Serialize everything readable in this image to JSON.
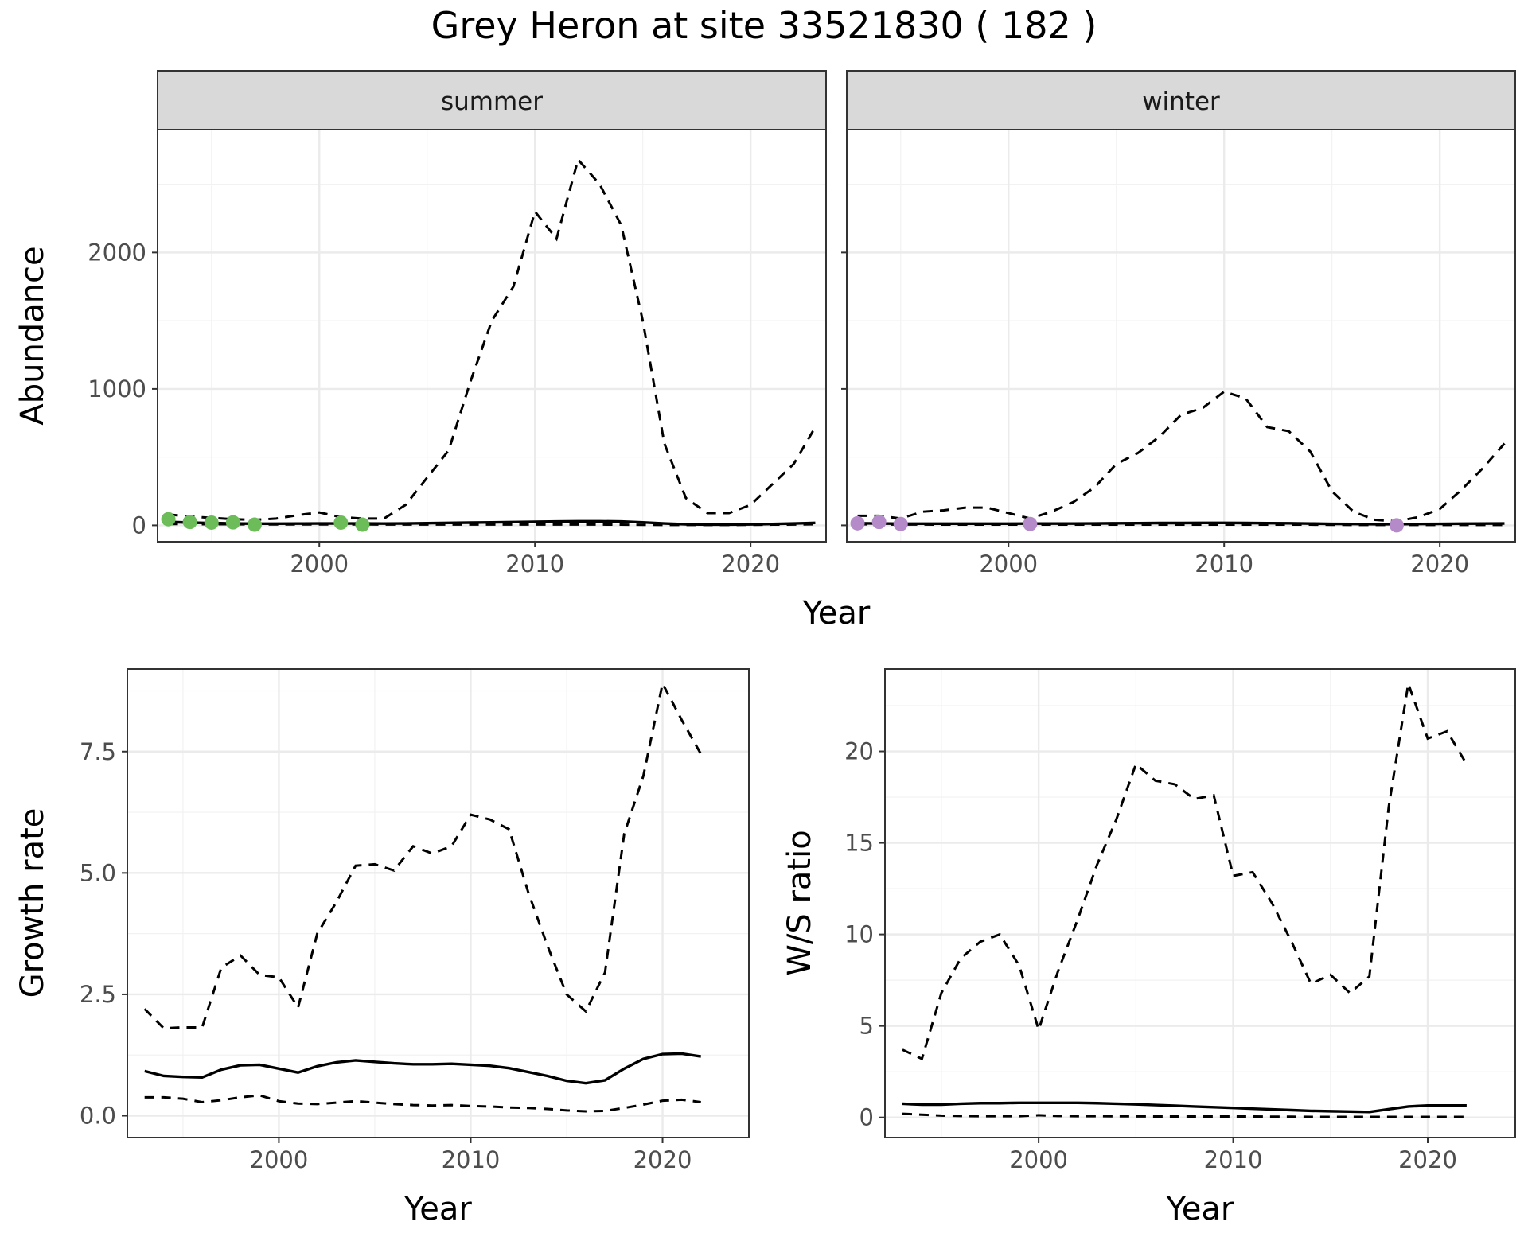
{
  "figure": {
    "title": "Grey Heron at site 33521830 ( 182 )"
  },
  "colors": {
    "summer_points": "#6cbd5a",
    "winter_points": "#b48ac8",
    "line": "#000000",
    "grid_major": "#ebebeb",
    "grid_minor": "#f2f2f2",
    "strip_fill": "#d9d9d9",
    "tick_label": "#4d4d4d"
  },
  "chart_data": [
    {
      "id": "abundance",
      "type": "line",
      "layout": "faceted",
      "facets": [
        "summer",
        "winter"
      ],
      "xlabel": "Year",
      "ylabel": "Abundance",
      "xlim": [
        1992.5,
        2023.5
      ],
      "ylim": [
        -120,
        2900
      ],
      "xticks": [
        2000,
        2010,
        2020
      ],
      "yticks": [
        0,
        1000,
        2000
      ],
      "grid": true,
      "x": [
        1993,
        1994,
        1995,
        1996,
        1997,
        1998,
        1999,
        2000,
        2001,
        2002,
        2003,
        2004,
        2005,
        2006,
        2007,
        2008,
        2009,
        2010,
        2011,
        2012,
        2013,
        2014,
        2015,
        2016,
        2017,
        2018,
        2019,
        2020,
        2021,
        2022,
        2023
      ],
      "panels": {
        "summer": {
          "lower": [
            10,
            9,
            8,
            8,
            7,
            7,
            7,
            7,
            7,
            7,
            6,
            6,
            6,
            6,
            6,
            6,
            6,
            6,
            6,
            6,
            6,
            5,
            4,
            3,
            3,
            3,
            3,
            4,
            5,
            6,
            8
          ],
          "median": [
            25,
            20,
            17,
            14,
            12,
            12,
            13,
            14,
            14,
            14,
            13,
            14,
            16,
            18,
            20,
            22,
            24,
            26,
            28,
            30,
            30,
            28,
            22,
            14,
            8,
            6,
            6,
            7,
            10,
            14,
            18
          ],
          "upper": [
            80,
            65,
            55,
            45,
            40,
            50,
            75,
            95,
            60,
            50,
            50,
            150,
            350,
            550,
            1050,
            1500,
            1750,
            2300,
            2100,
            2680,
            2500,
            2200,
            1500,
            600,
            200,
            90,
            90,
            150,
            300,
            450,
            720
          ],
          "observed": {
            "x": [
              1993,
              1994,
              1995,
              1996,
              1997,
              2001,
              2002
            ],
            "y": [
              45,
              25,
              20,
              22,
              5,
              20,
              5
            ]
          }
        },
        "winter": {
          "lower": [
            8,
            7,
            6,
            6,
            5,
            5,
            5,
            5,
            5,
            5,
            5,
            5,
            5,
            5,
            5,
            5,
            5,
            5,
            5,
            5,
            5,
            5,
            4,
            3,
            3,
            3,
            3,
            3,
            3,
            3,
            3
          ],
          "median": [
            15,
            14,
            12,
            12,
            12,
            12,
            12,
            12,
            13,
            13,
            13,
            14,
            15,
            16,
            17,
            17,
            18,
            18,
            17,
            16,
            15,
            13,
            11,
            10,
            9,
            9,
            10,
            11,
            12,
            13,
            14
          ],
          "upper": [
            70,
            70,
            50,
            100,
            110,
            130,
            130,
            90,
            50,
            100,
            170,
            280,
            450,
            530,
            650,
            810,
            860,
            980,
            930,
            720,
            690,
            540,
            250,
            100,
            40,
            30,
            60,
            120,
            260,
            420,
            600
          ],
          "observed": {
            "x": [
              1993,
              1994,
              1995,
              2001,
              2018
            ],
            "y": [
              15,
              25,
              10,
              10,
              0
            ]
          }
        }
      }
    },
    {
      "id": "growth",
      "type": "line",
      "xlabel": "Year",
      "ylabel": "Growth rate",
      "xlim": [
        1992.1,
        2024.5
      ],
      "ylim": [
        -0.45,
        9.2
      ],
      "xticks": [
        2000,
        2010,
        2020
      ],
      "yticks": [
        0.0,
        2.5,
        5.0,
        7.5
      ],
      "ytick_labels": [
        "0.0",
        "2.5",
        "5.0",
        "7.5"
      ],
      "grid": true,
      "x": [
        1993,
        1994,
        1995,
        1996,
        1997,
        1998,
        1999,
        2000,
        2001,
        2002,
        2003,
        2004,
        2005,
        2006,
        2007,
        2008,
        2009,
        2010,
        2011,
        2012,
        2013,
        2014,
        2015,
        2016,
        2017,
        2018,
        2019,
        2020,
        2021,
        2022
      ],
      "lower": [
        0.38,
        0.38,
        0.35,
        0.28,
        0.32,
        0.38,
        0.42,
        0.3,
        0.25,
        0.24,
        0.27,
        0.3,
        0.27,
        0.24,
        0.22,
        0.21,
        0.22,
        0.2,
        0.19,
        0.17,
        0.16,
        0.14,
        0.11,
        0.09,
        0.1,
        0.16,
        0.23,
        0.31,
        0.33,
        0.28
      ],
      "median": [
        0.92,
        0.82,
        0.8,
        0.79,
        0.95,
        1.04,
        1.05,
        0.97,
        0.89,
        1.02,
        1.1,
        1.14,
        1.11,
        1.08,
        1.06,
        1.06,
        1.07,
        1.05,
        1.03,
        0.98,
        0.9,
        0.82,
        0.72,
        0.67,
        0.73,
        0.97,
        1.17,
        1.27,
        1.28,
        1.22
      ],
      "upper": [
        2.2,
        1.8,
        1.82,
        1.82,
        3.05,
        3.3,
        2.9,
        2.85,
        2.23,
        3.75,
        4.4,
        5.15,
        5.18,
        5.05,
        5.55,
        5.4,
        5.55,
        6.2,
        6.1,
        5.9,
        4.6,
        3.5,
        2.5,
        2.15,
        2.95,
        5.8,
        7.0,
        8.9,
        8.15,
        7.45
      ]
    },
    {
      "id": "ws_ratio",
      "type": "line",
      "xlabel": "Year",
      "ylabel": "W/S ratio",
      "xlim": [
        1992.1,
        2024.5
      ],
      "ylim": [
        -1.1,
        24.5
      ],
      "xticks": [
        2000,
        2010,
        2020
      ],
      "yticks": [
        0,
        5,
        10,
        15,
        20
      ],
      "ytick_labels": [
        "0",
        "5",
        "10",
        "15",
        "20"
      ],
      "grid": true,
      "x": [
        1993,
        1994,
        1995,
        1996,
        1997,
        1998,
        1999,
        2000,
        2001,
        2002,
        2003,
        2004,
        2005,
        2006,
        2007,
        2008,
        2009,
        2010,
        2011,
        2012,
        2013,
        2014,
        2015,
        2016,
        2017,
        2018,
        2019,
        2020,
        2021,
        2022
      ],
      "lower": [
        0.2,
        0.15,
        0.1,
        0.08,
        0.07,
        0.07,
        0.07,
        0.12,
        0.08,
        0.07,
        0.07,
        0.06,
        0.06,
        0.05,
        0.05,
        0.05,
        0.05,
        0.05,
        0.05,
        0.04,
        0.04,
        0.03,
        0.03,
        0.03,
        0.03,
        0.03,
        0.03,
        0.03,
        0.03,
        0.03
      ],
      "median": [
        0.75,
        0.7,
        0.7,
        0.75,
        0.78,
        0.78,
        0.8,
        0.8,
        0.8,
        0.8,
        0.78,
        0.75,
        0.72,
        0.68,
        0.64,
        0.6,
        0.56,
        0.52,
        0.48,
        0.44,
        0.4,
        0.36,
        0.34,
        0.32,
        0.3,
        0.45,
        0.6,
        0.65,
        0.65,
        0.65
      ],
      "upper": [
        3.7,
        3.2,
        6.8,
        8.7,
        9.6,
        10.0,
        8.3,
        4.8,
        8.0,
        10.8,
        13.8,
        16.3,
        19.3,
        18.4,
        18.2,
        17.4,
        17.6,
        13.2,
        13.4,
        11.7,
        9.6,
        7.3,
        7.8,
        6.8,
        7.7,
        17.0,
        23.7,
        20.7,
        21.1,
        19.3
      ]
    }
  ]
}
